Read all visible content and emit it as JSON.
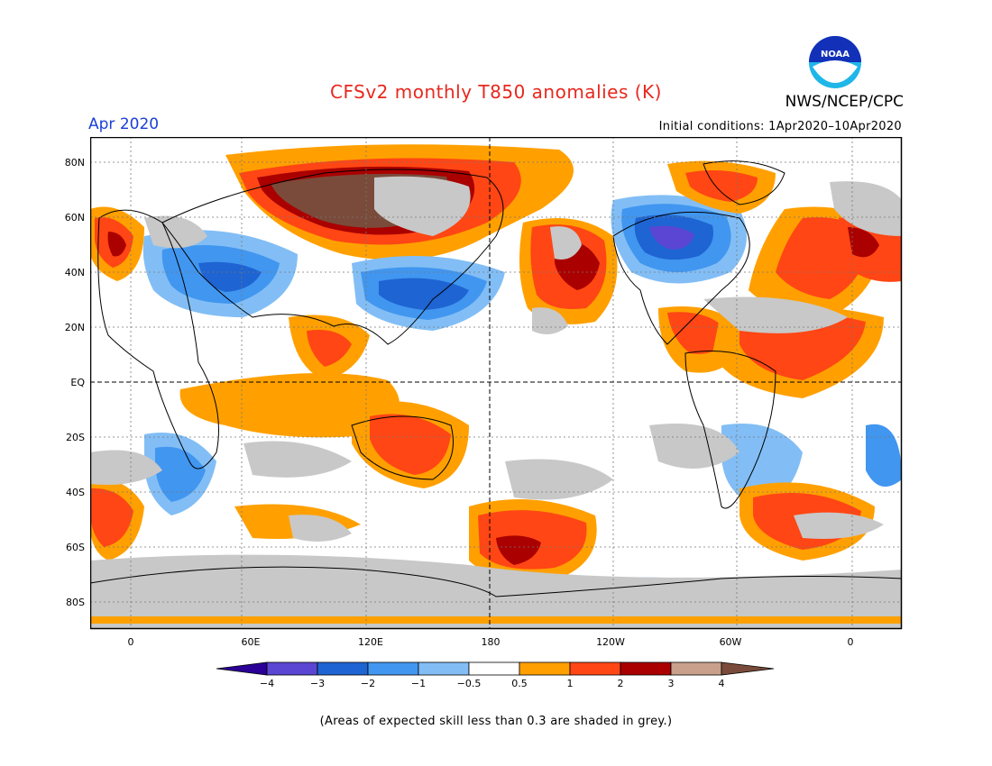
{
  "header": {
    "title": "CFSv2 monthly T850 anomalies (K)",
    "org": "NWS/NCEP/CPC",
    "period": "Apr 2020",
    "initial_conditions": "Initial conditions: 1Apr2020–10Apr2020",
    "logo_text": "NOAA"
  },
  "map": {
    "lat_labels": [
      "80N",
      "60N",
      "40N",
      "20N",
      "EQ",
      "20S",
      "40S",
      "60S",
      "80S"
    ],
    "lon_labels": [
      "0",
      "60E",
      "120E",
      "180",
      "120W",
      "60W",
      "0"
    ]
  },
  "colorbar": {
    "labels": [
      "−4",
      "−3",
      "−2",
      "−1",
      "−0.5",
      "0.5",
      "1",
      "2",
      "3",
      "4"
    ],
    "colors": [
      "#2a0096",
      "#5a46d2",
      "#1e64d2",
      "#4196f0",
      "#82bef5",
      "#ffffff",
      "#ffa000",
      "#ff4614",
      "#aa0000",
      "#c8a08c",
      "#7a4b3a"
    ]
  },
  "footer": {
    "note": "(Areas of expected skill less than 0.3 are shaded in grey.)"
  }
}
